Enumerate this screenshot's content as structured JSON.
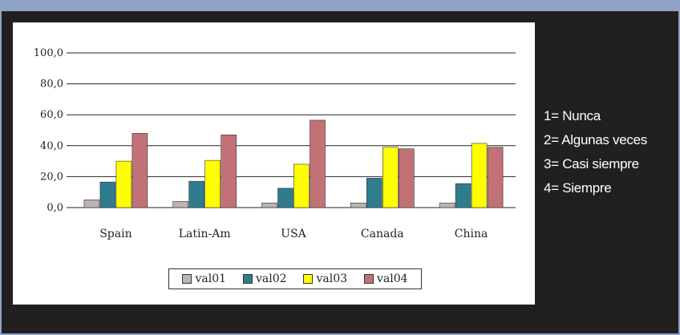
{
  "chart_data": {
    "type": "bar",
    "categories": [
      "Spain",
      "Latin-Am",
      "USA",
      "Canada",
      "China"
    ],
    "series": [
      {
        "name": "val01",
        "color": "#bcb4b4",
        "values": [
          5.0,
          4.0,
          3.0,
          3.0,
          3.0
        ]
      },
      {
        "name": "val02",
        "color": "#2f7c8f",
        "values": [
          16.5,
          17.0,
          12.5,
          19.0,
          15.5
        ]
      },
      {
        "name": "val03",
        "color": "#ffff00",
        "values": [
          30.0,
          30.5,
          28.0,
          39.0,
          41.5
        ]
      },
      {
        "name": "val04",
        "color": "#c27277",
        "values": [
          48.0,
          47.0,
          56.5,
          38.0,
          39.0
        ]
      }
    ],
    "yticks": [
      "0,0",
      "20,0",
      "40,0",
      "60,0",
      "80,0",
      "100,0"
    ],
    "ylim": [
      0,
      100
    ],
    "grid": true,
    "legend_position": "bottom",
    "title": "",
    "xlabel": "",
    "ylabel": ""
  },
  "scale_notes": [
    "1= Nunca",
    "2= Algunas veces",
    "3= Casi siempre",
    "4= Siempre"
  ]
}
